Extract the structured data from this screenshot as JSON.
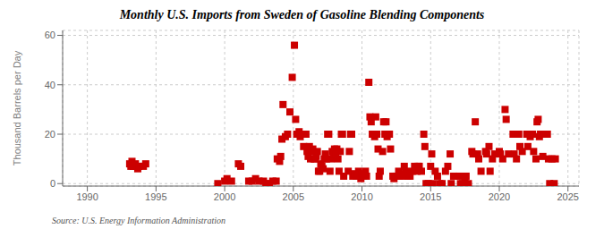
{
  "chart_data": {
    "type": "scatter",
    "title": "Monthly U.S. Imports from Sweden of Gasoline Blending Components",
    "ylabel": "Thousand Barrels per Day",
    "annotations": [
      "Source: U.S. Energy Information Administration"
    ],
    "color": "#cc0000",
    "marker": "square",
    "grid": true,
    "xlim": [
      1988.2,
      2025.8
    ],
    "xticks": [
      1990,
      1995,
      2000,
      2005,
      2010,
      2015,
      2020,
      2025
    ],
    "ylim": [
      -1,
      62
    ],
    "yticks": [
      0,
      20,
      40,
      60
    ],
    "x": [
      1993.08,
      1993.17,
      1993.25,
      1993.33,
      1993.5,
      1993.67,
      1993.75,
      1994.08,
      1994.25,
      1999.5,
      2000.0,
      2000.17,
      2000.5,
      2001.0,
      2001.17,
      2001.75,
      2002.0,
      2002.25,
      2002.5,
      2002.83,
      2003.0,
      2003.25,
      2003.5,
      2003.75,
      2003.83,
      2004.0,
      2004.08,
      2004.17,
      2004.25,
      2004.42,
      2004.58,
      2004.75,
      2004.92,
      2005.08,
      2005.17,
      2005.25,
      2005.42,
      2005.5,
      2005.58,
      2005.67,
      2005.75,
      2005.83,
      2005.92,
      2006.0,
      2006.08,
      2006.17,
      2006.25,
      2006.33,
      2006.42,
      2006.5,
      2006.58,
      2006.67,
      2006.75,
      2006.83,
      2006.92,
      2007.0,
      2007.08,
      2007.17,
      2007.25,
      2007.33,
      2007.42,
      2007.5,
      2007.58,
      2007.67,
      2007.75,
      2007.83,
      2007.92,
      2008.0,
      2008.08,
      2008.17,
      2008.25,
      2008.33,
      2008.42,
      2008.5,
      2008.58,
      2008.67,
      2009.0,
      2009.08,
      2009.17,
      2009.25,
      2009.33,
      2009.5,
      2009.58,
      2009.67,
      2009.75,
      2009.83,
      2009.92,
      2010.0,
      2010.08,
      2010.25,
      2010.33,
      2010.5,
      2010.58,
      2010.67,
      2010.75,
      2010.92,
      2011.0,
      2011.08,
      2011.17,
      2011.25,
      2011.33,
      2011.5,
      2011.58,
      2011.67,
      2011.75,
      2011.83,
      2011.92,
      2012.0,
      2012.08,
      2012.25,
      2012.33,
      2012.5,
      2012.67,
      2012.75,
      2012.83,
      2013.0,
      2013.08,
      2013.17,
      2013.33,
      2013.42,
      2013.5,
      2013.67,
      2013.83,
      2014.0,
      2014.08,
      2014.17,
      2014.33,
      2014.5,
      2014.58,
      2014.67,
      2014.83,
      2015.0,
      2015.08,
      2015.17,
      2015.33,
      2015.5,
      2015.67,
      2015.83,
      2016.08,
      2016.25,
      2016.42,
      2016.5,
      2016.67,
      2017.08,
      2017.17,
      2017.33,
      2017.5,
      2017.58,
      2017.75,
      2018.0,
      2018.08,
      2018.25,
      2018.42,
      2018.5,
      2018.67,
      2019.0,
      2019.08,
      2019.25,
      2019.33,
      2019.5,
      2019.67,
      2020.0,
      2020.08,
      2020.25,
      2020.42,
      2020.5,
      2020.67,
      2021.0,
      2021.08,
      2021.25,
      2021.42,
      2021.5,
      2021.67,
      2022.0,
      2022.08,
      2022.25,
      2022.42,
      2022.5,
      2022.67,
      2022.75,
      2022.83,
      2022.92,
      2023.0,
      2023.08,
      2023.17,
      2023.33,
      2023.5,
      2023.58,
      2023.67,
      2023.83,
      2024.0,
      2024.08
    ],
    "values": [
      8,
      7,
      9,
      7,
      8,
      6,
      7,
      7,
      8,
      0,
      1,
      2,
      1,
      8,
      7,
      1,
      1,
      2,
      1,
      1,
      0,
      0,
      1,
      1,
      10,
      9,
      11,
      18,
      32,
      19,
      20,
      29,
      43,
      56,
      26,
      20,
      21,
      19,
      20,
      20,
      15,
      20,
      20,
      13,
      11,
      15,
      10,
      13,
      14,
      10,
      10,
      11,
      13,
      5,
      5,
      8,
      7,
      6,
      10,
      12,
      10,
      20,
      20,
      5,
      10,
      13,
      12,
      14,
      12,
      14,
      10,
      5,
      13,
      20,
      20,
      3,
      5,
      13,
      20,
      20,
      3,
      4,
      3,
      3,
      5,
      3,
      2,
      4,
      3,
      5,
      3,
      41,
      27,
      25,
      20,
      19,
      27,
      20,
      14,
      3,
      5,
      13,
      25,
      20,
      25,
      19,
      20,
      20,
      14,
      3,
      2,
      3,
      5,
      3,
      4,
      3,
      7,
      5,
      3,
      4,
      3,
      5,
      7,
      5,
      7,
      7,
      5,
      20,
      15,
      0,
      0,
      7,
      12,
      0,
      5,
      3,
      0,
      0,
      5,
      7,
      12,
      0,
      3,
      3,
      0,
      0,
      2,
      3,
      0,
      13,
      12,
      25,
      12,
      10,
      5,
      13,
      12,
      15,
      5,
      10,
      12,
      13,
      12,
      10,
      30,
      26,
      12,
      20,
      12,
      10,
      20,
      15,
      13,
      20,
      15,
      19,
      20,
      13,
      10,
      25,
      26,
      19,
      20,
      20,
      11,
      20,
      20,
      10,
      0,
      10,
      0,
      10
    ]
  }
}
